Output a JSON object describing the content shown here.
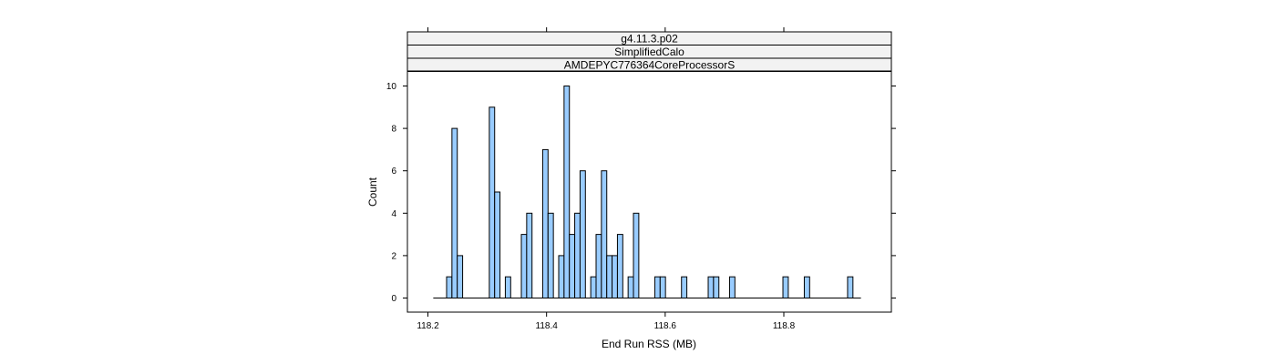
{
  "chart_data": {
    "type": "bar",
    "strips": [
      "g4.11.3.p02",
      "SimplifiedCalo",
      "AMDEPYC776364CoreProcessorS"
    ],
    "xlabel": "End Run RSS (MB)",
    "ylabel": "Count",
    "xlim": [
      118.2,
      118.94
    ],
    "ylim": [
      -0.6,
      10.6
    ],
    "x_ticks": [
      118.2,
      118.4,
      118.6,
      118.8
    ],
    "x_tick_labels": [
      "118.2",
      "118.4",
      "118.6",
      "118.8"
    ],
    "y_ticks": [
      0,
      2,
      4,
      6,
      8,
      10
    ],
    "y_tick_labels": [
      "0",
      "2",
      "4",
      "6",
      "8",
      "10"
    ],
    "bin_range": [
      118.209,
      118.93
    ],
    "bin_width": 0.00902,
    "bins": [
      {
        "x": 118.236,
        "count": 1
      },
      {
        "x": 118.245,
        "count": 8
      },
      {
        "x": 118.254,
        "count": 2
      },
      {
        "x": 118.308,
        "count": 9
      },
      {
        "x": 118.317,
        "count": 5
      },
      {
        "x": 118.335,
        "count": 1
      },
      {
        "x": 118.362,
        "count": 3
      },
      {
        "x": 118.371,
        "count": 4
      },
      {
        "x": 118.398,
        "count": 7
      },
      {
        "x": 118.407,
        "count": 4
      },
      {
        "x": 118.425,
        "count": 2
      },
      {
        "x": 118.434,
        "count": 10
      },
      {
        "x": 118.443,
        "count": 3
      },
      {
        "x": 118.452,
        "count": 4
      },
      {
        "x": 118.461,
        "count": 6
      },
      {
        "x": 118.479,
        "count": 1
      },
      {
        "x": 118.488,
        "count": 3
      },
      {
        "x": 118.497,
        "count": 6
      },
      {
        "x": 118.506,
        "count": 2
      },
      {
        "x": 118.515,
        "count": 2
      },
      {
        "x": 118.524,
        "count": 3
      },
      {
        "x": 118.542,
        "count": 1
      },
      {
        "x": 118.551,
        "count": 4
      },
      {
        "x": 118.587,
        "count": 1
      },
      {
        "x": 118.596,
        "count": 1
      },
      {
        "x": 118.632,
        "count": 1
      },
      {
        "x": 118.677,
        "count": 1
      },
      {
        "x": 118.686,
        "count": 1
      },
      {
        "x": 118.713,
        "count": 1
      },
      {
        "x": 118.803,
        "count": 1
      },
      {
        "x": 118.839,
        "count": 1
      },
      {
        "x": 118.912,
        "count": 1
      }
    ],
    "grid": false,
    "bar_color": "#99ccff",
    "bar_outline_color": "#000000",
    "strip_color": "#f2f2f2"
  }
}
